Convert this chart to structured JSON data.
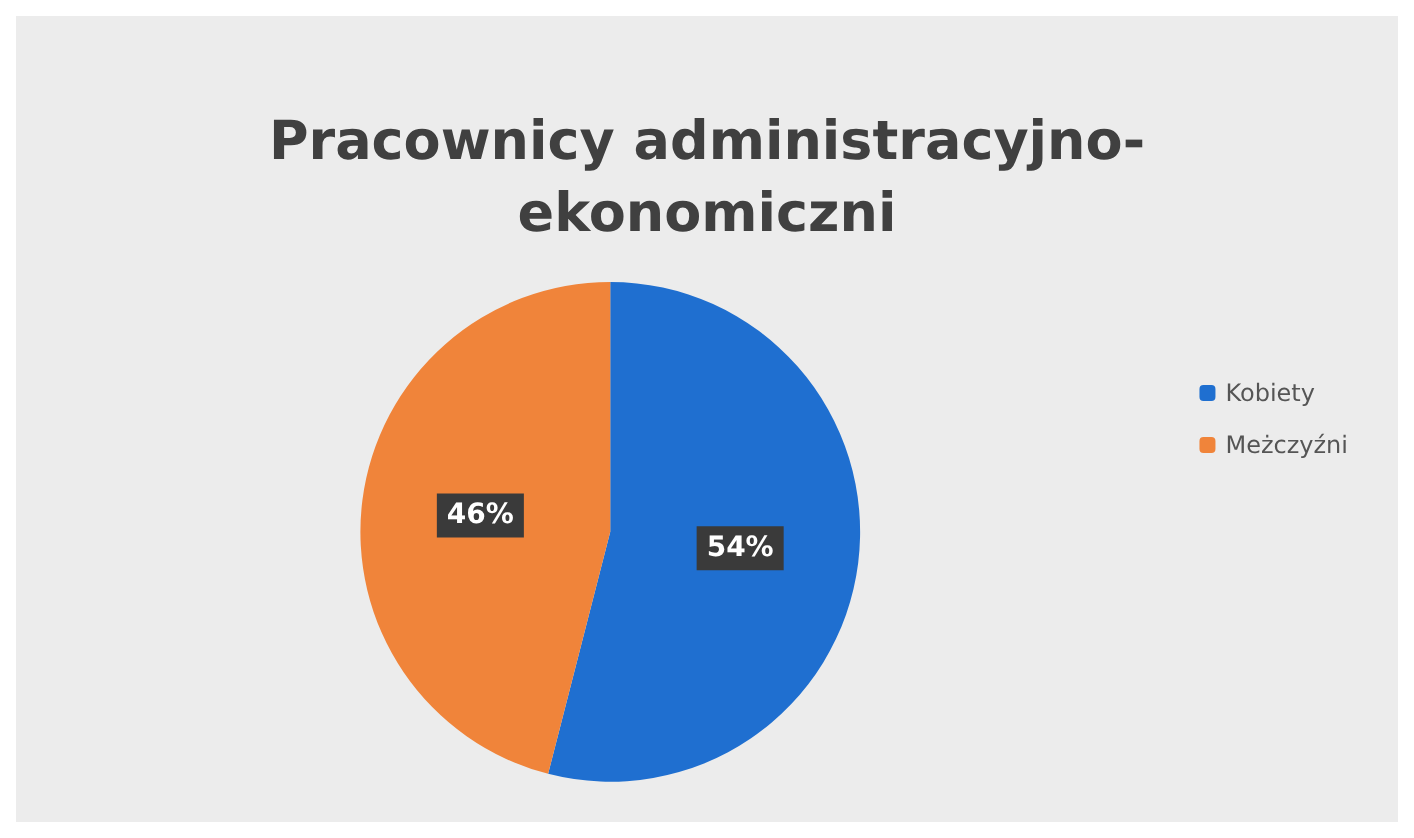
{
  "chart_data": {
    "type": "pie",
    "title": "Pracownicy administracyjno-\nekonomiczni",
    "categories": [
      "Kobiety",
      "Meżczyźni"
    ],
    "values": [
      54,
      46
    ],
    "colors": [
      "#1f6fd0",
      "#f0843a"
    ],
    "value_labels": [
      "54%",
      "46%"
    ],
    "legend": "right"
  }
}
